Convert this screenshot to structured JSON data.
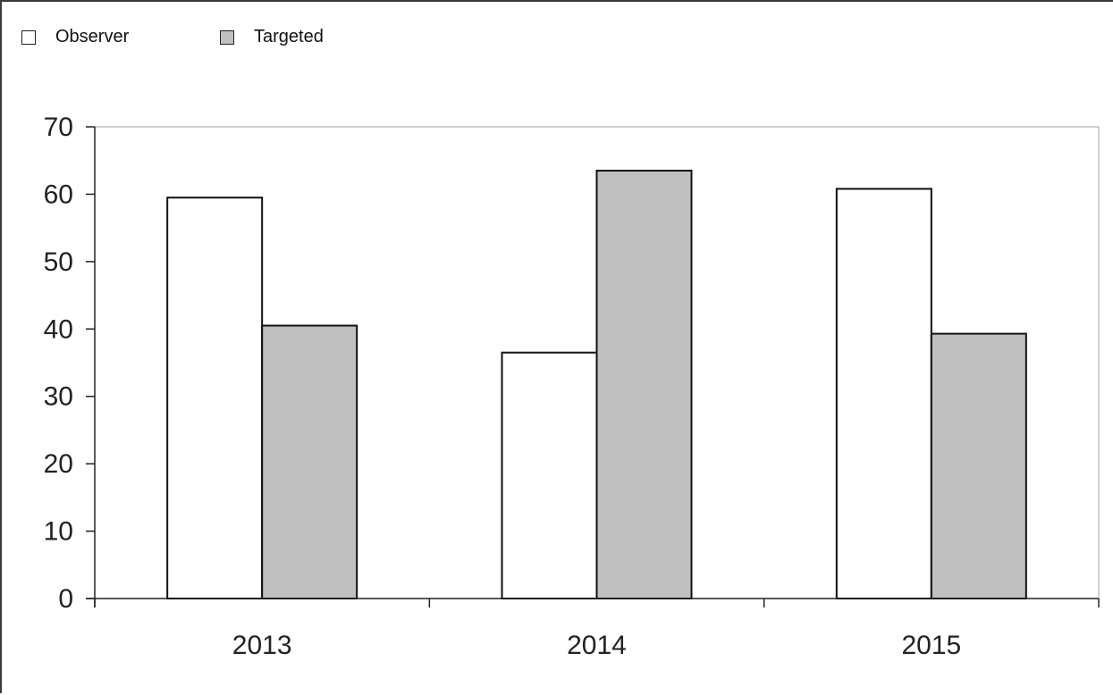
{
  "chart_data": {
    "type": "bar",
    "categories": [
      "2013",
      "2014",
      "2015"
    ],
    "series": [
      {
        "name": "Observer",
        "values": [
          59.5,
          36.5,
          60.8
        ],
        "color": "#ffffff"
      },
      {
        "name": "Targeted",
        "values": [
          40.5,
          63.5,
          39.3
        ],
        "color": "#c0c0c0"
      }
    ],
    "ylim": [
      0,
      70
    ],
    "yticks": [
      "0",
      "10",
      "20",
      "30",
      "40",
      "50",
      "60",
      "70"
    ],
    "xlabel": "",
    "ylabel": "",
    "title": "",
    "legend_position": "top-left",
    "grid": false
  }
}
